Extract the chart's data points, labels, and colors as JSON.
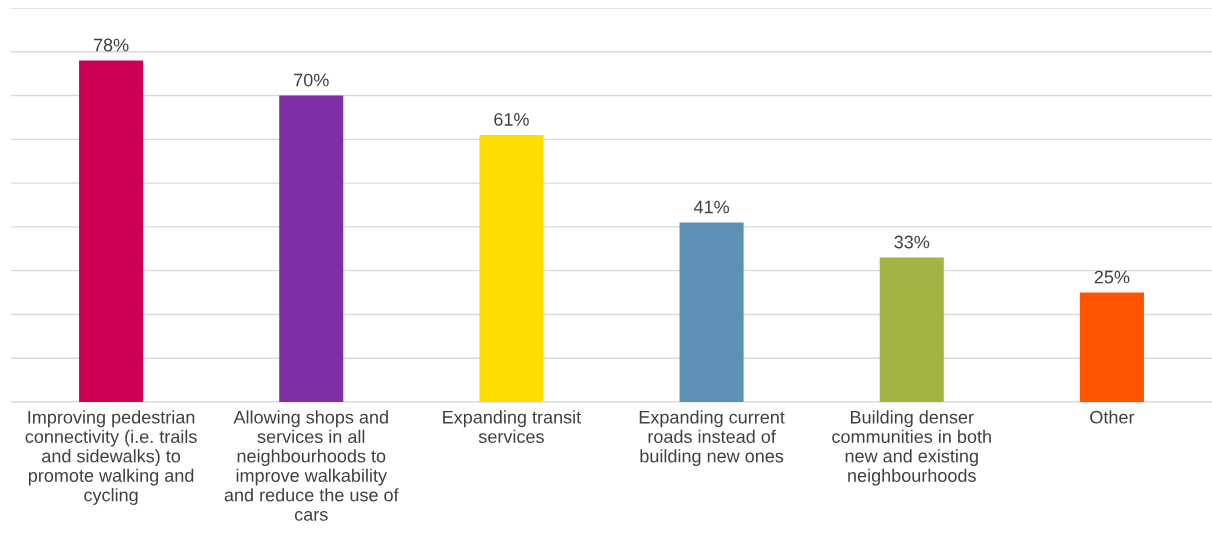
{
  "chart_data": {
    "type": "bar",
    "categories": [
      "Improving pedestrian\nconnectivity (i.e. trails\nand sidewalks) to\npromote walking and\ncycling",
      "Allowing shops and\nservices in all\nneighbourhoods to\nimprove walkability\nand reduce the use of\ncars",
      "Expanding transit\nservices",
      "Expanding current\nroads instead of\nbuilding new ones",
      "Building denser\ncommunities in both\nnew and existing\nneighbourhoods",
      "Other"
    ],
    "values": [
      78,
      70,
      61,
      41,
      33,
      25
    ],
    "colors": [
      "#cc0055",
      "#7f2fa5",
      "#ffdd00",
      "#5e8fb5",
      "#a5b342",
      "#ff5500"
    ],
    "value_labels": [
      "78%",
      "70%",
      "61%",
      "41%",
      "33%",
      "25%"
    ],
    "ylim": [
      0,
      90
    ],
    "yticks": [
      {
        "value": 0,
        "label": null
      },
      {
        "value": 10,
        "label": null
      },
      {
        "value": 20,
        "label": null
      },
      {
        "value": 30,
        "label": null
      },
      {
        "value": 40,
        "label": null
      },
      {
        "value": 50,
        "label": null
      },
      {
        "value": 60,
        "label": null
      },
      {
        "value": 70,
        "label": null
      },
      {
        "value": 80,
        "label": null
      },
      {
        "value": 90,
        "label": null
      }
    ],
    "grid": "y",
    "tick_labels": "x"
  }
}
